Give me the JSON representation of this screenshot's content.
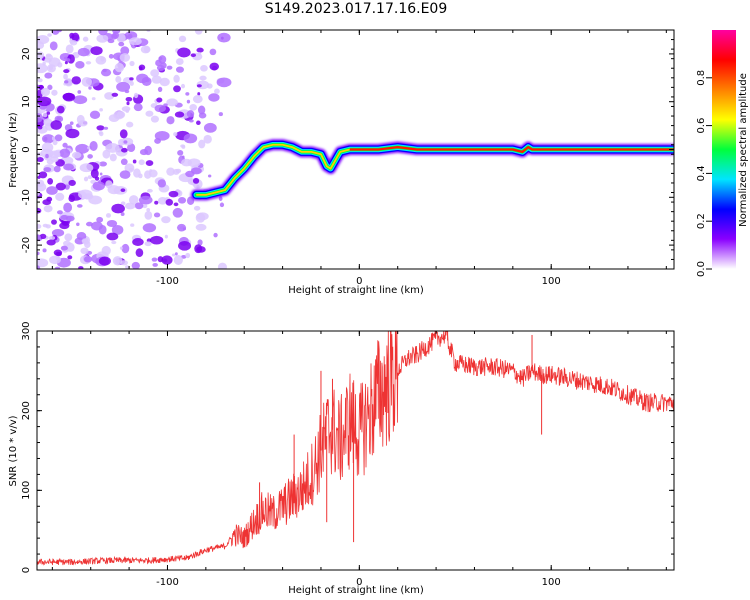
{
  "title": "S149.2023.017.17.16.E09",
  "chart_data": [
    {
      "type": "heatmap",
      "xlabel": "Height of straight line (km)",
      "ylabel": "Frequency (Hz)",
      "xlim": [
        -168,
        164
      ],
      "ylim": [
        -25,
        25
      ],
      "xticks": [
        -100,
        0,
        100
      ],
      "xtick_labels": [
        "-100",
        "0",
        "100"
      ],
      "yticks": [
        -20,
        -10,
        0,
        10,
        20
      ],
      "ytick_labels": [
        "-20",
        "-10",
        "0",
        "10",
        "20"
      ],
      "colorbar": {
        "label": "Normalized spectral amplitude",
        "range": [
          0,
          1
        ],
        "ticks": [
          0.0,
          0.2,
          0.4,
          0.6,
          0.8
        ],
        "tick_labels": [
          "0.0",
          "0.2",
          "0.4",
          "0.6",
          "0.8"
        ],
        "colormap": [
          "#ffffff",
          "#8a00ff",
          "#0000ff",
          "#00e5ff",
          "#00ff3c",
          "#ffff00",
          "#ff8000",
          "#ff0000",
          "#ff00a0"
        ]
      },
      "ridge": {
        "x": [
          -85,
          -80,
          -75,
          -70,
          -65,
          -60,
          -55,
          -50,
          -45,
          -40,
          -35,
          -30,
          -25,
          -20,
          -17,
          -15,
          -10,
          -5,
          0,
          10,
          20,
          30,
          50,
          80,
          85,
          88,
          90,
          100,
          120,
          140,
          164
        ],
        "y": [
          -9.5,
          -9.5,
          -9,
          -8.5,
          -6,
          -4,
          -1.5,
          0.5,
          1,
          1,
          0.5,
          -0.5,
          -0.5,
          -1,
          -3.5,
          -4,
          -0.5,
          0,
          0,
          0,
          0.5,
          0,
          0,
          0,
          -0.5,
          0.5,
          0,
          0,
          0,
          0,
          0
        ]
      },
      "noise_region": {
        "x": [
          -168,
          -70
        ],
        "y": [
          -25,
          25
        ]
      }
    },
    {
      "type": "line",
      "xlabel": "Height of straight line (km)",
      "ylabel": "SNR (10 * v/v)",
      "xlim": [
        -168,
        164
      ],
      "ylim": [
        0,
        300
      ],
      "xticks": [
        -100,
        0,
        100
      ],
      "xtick_labels": [
        "-100",
        "0",
        "100"
      ],
      "yticks": [
        0,
        100,
        200,
        300
      ],
      "ytick_labels": [
        "0",
        "100",
        "200",
        "300"
      ],
      "color": "#ee3333",
      "x": [
        -168,
        -150,
        -130,
        -110,
        -90,
        -80,
        -70,
        -65,
        -60,
        -55,
        -50,
        -45,
        -40,
        -35,
        -30,
        -25,
        -20,
        -15,
        -10,
        -5,
        0,
        5,
        10,
        15,
        20,
        25,
        30,
        35,
        40,
        45,
        50,
        60,
        70,
        80,
        85,
        90,
        95,
        100,
        110,
        120,
        130,
        140,
        150,
        164
      ],
      "y": [
        10,
        10,
        12,
        12,
        15,
        25,
        30,
        45,
        40,
        60,
        75,
        70,
        80,
        90,
        100,
        120,
        150,
        180,
        160,
        190,
        170,
        195,
        220,
        235,
        250,
        265,
        270,
        280,
        290,
        295,
        260,
        255,
        255,
        250,
        240,
        250,
        245,
        245,
        240,
        235,
        230,
        220,
        210,
        210
      ],
      "spikes": [
        {
          "x": -52,
          "y": 110
        },
        {
          "x": -34,
          "y": 170
        },
        {
          "x": -20,
          "y": 250
        },
        {
          "x": -17,
          "y": 60
        },
        {
          "x": -14,
          "y": 240
        },
        {
          "x": -3,
          "y": 35
        },
        {
          "x": 46,
          "y": 300
        },
        {
          "x": 90,
          "y": 295
        },
        {
          "x": 95,
          "y": 170
        }
      ]
    }
  ]
}
